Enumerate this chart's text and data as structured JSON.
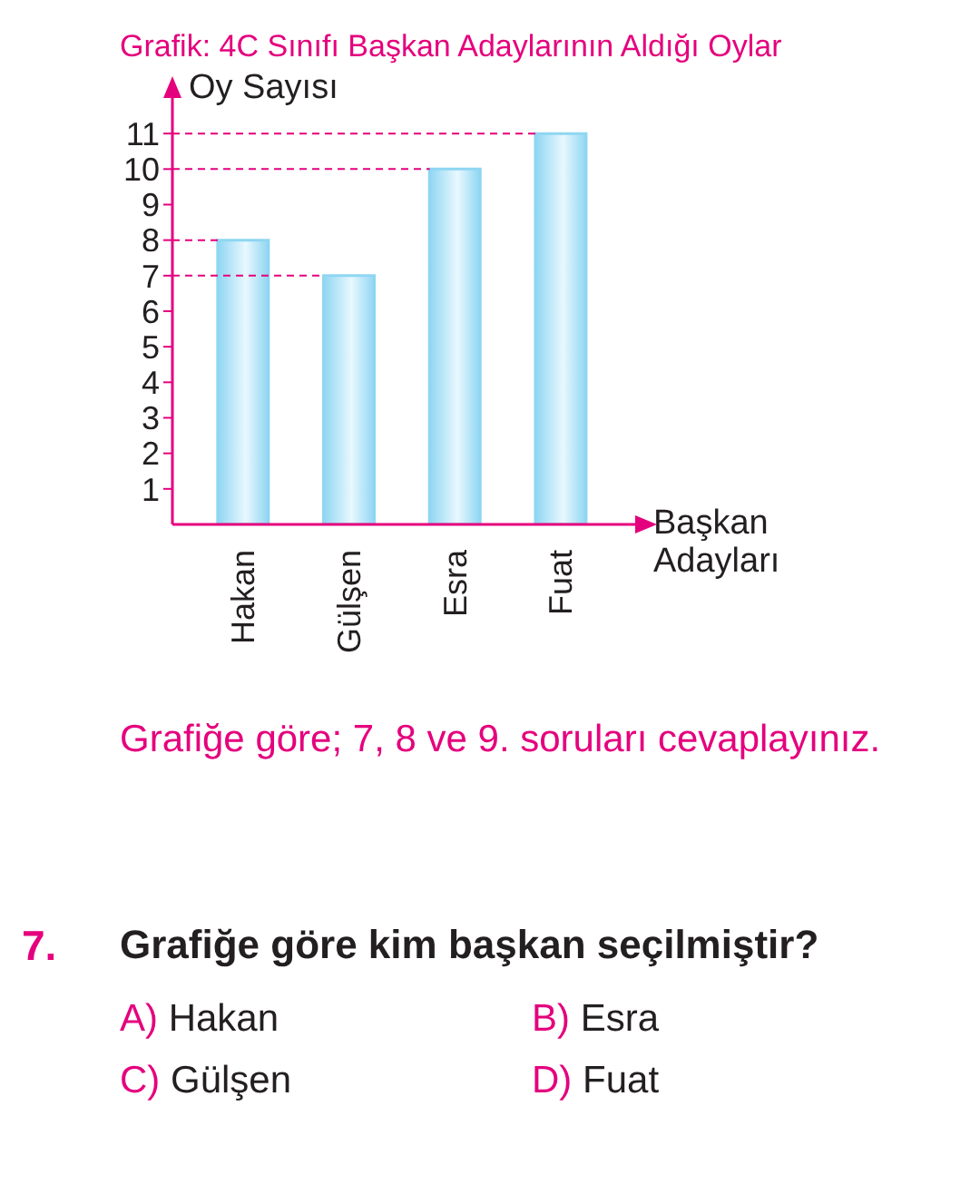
{
  "chart_data": {
    "type": "bar",
    "title": "Grafik: 4C Sınıfı Başkan Adaylarının Aldığı Oylar",
    "ylabel": "Oy Sayısı",
    "xlabel": "Başkan Adayları",
    "categories": [
      "Hakan",
      "Gülşen",
      "Esra",
      "Fuat"
    ],
    "values": [
      8,
      7,
      10,
      11
    ],
    "color": "#8fd6f2",
    "ylim": [
      0,
      12
    ],
    "yticks": [
      1,
      2,
      3,
      4,
      5,
      6,
      7,
      8,
      9,
      10,
      11
    ],
    "grid": false,
    "legend": false,
    "ref_lines": [
      {
        "axis": "y",
        "value": 11,
        "color": "#e5007d",
        "line_style": "dashed"
      },
      {
        "axis": "y",
        "value": 10,
        "color": "#e5007d",
        "line_style": "dashed"
      },
      {
        "axis": "y",
        "value": 8,
        "color": "#e5007d",
        "line_style": "dashed"
      },
      {
        "axis": "y",
        "value": 7,
        "color": "#e5007d",
        "line_style": "dashed"
      }
    ],
    "annotations": [
      "Grafiğe göre; 7, 8 ve 9. soruları cevaplayınız.",
      "7.",
      "Grafiğe göre kim başkan seçilmiştir?",
      "A) Hakan",
      "B) Esra",
      "C) Gülşen",
      "D) Fuat"
    ]
  }
}
